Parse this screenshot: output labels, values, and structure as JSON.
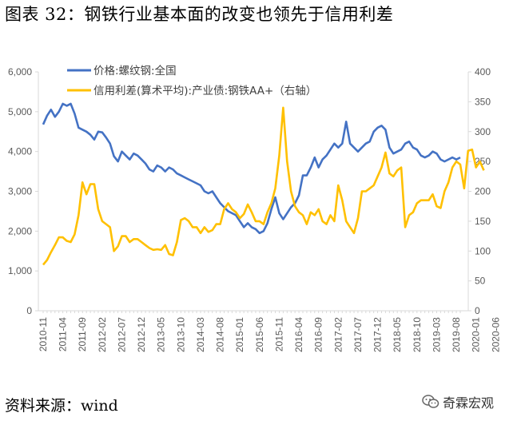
{
  "figure": {
    "title": "图表 32：钢铁行业基本面的改变也领先于信用利差",
    "source": "资料来源：wind",
    "watermark": "奇霖宏观"
  },
  "colors": {
    "series1": "#4472C4",
    "series2": "#FFC000",
    "axis": "#D9D9D9",
    "text": "#595959"
  },
  "chart_data": {
    "type": "line",
    "title": "钢铁行业基本面的改变也领先于信用利差",
    "legend_position": "top-left",
    "grid": false,
    "x_tick_labels": [
      "2010-11",
      "2011-04",
      "2011-09",
      "2012-02",
      "2012-07",
      "2012-12",
      "2013-05",
      "2013-10",
      "2014-03",
      "2014-08",
      "2015-01",
      "2015-06",
      "2015-11",
      "2016-04",
      "2016-09",
      "2017-02",
      "2017-07",
      "2017-12",
      "2018-05",
      "2018-10",
      "2019-03",
      "2019-08",
      "2020-01",
      "2020-06"
    ],
    "y_left": {
      "min": 0,
      "max": 6000,
      "ticks": [
        "0",
        "1,000",
        "2,000",
        "3,000",
        "4,000",
        "5,000",
        "6,000"
      ]
    },
    "y_right": {
      "min": 0,
      "max": 400,
      "ticks": [
        "0",
        "50",
        "100",
        "150",
        "200",
        "250",
        "300",
        "350",
        "400"
      ]
    },
    "series": [
      {
        "name": "价格:螺纹钢:全国",
        "axis": "left",
        "color": "#4472C4",
        "values": [
          4680,
          4900,
          5050,
          4870,
          5000,
          5200,
          5150,
          5200,
          4950,
          4600,
          4550,
          4500,
          4420,
          4300,
          4500,
          4480,
          4350,
          4200,
          3880,
          3750,
          4000,
          3900,
          3800,
          3950,
          3900,
          3800,
          3700,
          3550,
          3500,
          3650,
          3600,
          3500,
          3600,
          3550,
          3450,
          3400,
          3350,
          3300,
          3250,
          3200,
          3150,
          3000,
          2950,
          3000,
          2850,
          2700,
          2600,
          2500,
          2450,
          2400,
          2250,
          2100,
          2200,
          2100,
          2050,
          1950,
          2000,
          2200,
          2550,
          2850,
          2450,
          2300,
          2450,
          2600,
          2700,
          2900,
          3400,
          3400,
          3600,
          3850,
          3600,
          3800,
          3900,
          4050,
          4200,
          4100,
          4200,
          4750,
          4200,
          4100,
          4000,
          4100,
          4200,
          4250,
          4500,
          4600,
          4650,
          4550,
          4100,
          3950,
          4000,
          4050,
          4200,
          4250,
          4100,
          4050,
          3900,
          3850,
          3900,
          4000,
          3950,
          3800,
          3750,
          3800,
          3850,
          3800,
          3850
        ]
      },
      {
        "name": "信用利差(算术平均):产业债:钢铁AA+（右轴）",
        "axis": "right",
        "color": "#FFC000",
        "values": [
          77,
          85,
          98,
          110,
          123,
          123,
          117,
          115,
          128,
          160,
          215,
          195,
          212,
          212,
          170,
          150,
          145,
          140,
          100,
          108,
          125,
          125,
          115,
          120,
          120,
          115,
          110,
          105,
          102,
          103,
          102,
          110,
          95,
          93,
          115,
          152,
          155,
          150,
          140,
          140,
          130,
          140,
          132,
          135,
          145,
          145,
          170,
          180,
          170,
          165,
          155,
          162,
          178,
          165,
          150,
          150,
          145,
          165,
          180,
          205,
          260,
          340,
          250,
          200,
          175,
          165,
          160,
          145,
          165,
          160,
          170,
          150,
          145,
          160,
          150,
          210,
          185,
          150,
          140,
          130,
          155,
          200,
          200,
          205,
          210,
          225,
          240,
          265,
          230,
          225,
          235,
          240,
          140,
          160,
          165,
          180,
          185,
          185,
          185,
          195,
          175,
          172,
          200,
          215,
          240,
          250,
          245,
          205,
          268,
          270,
          240,
          250,
          235
        ]
      }
    ]
  }
}
